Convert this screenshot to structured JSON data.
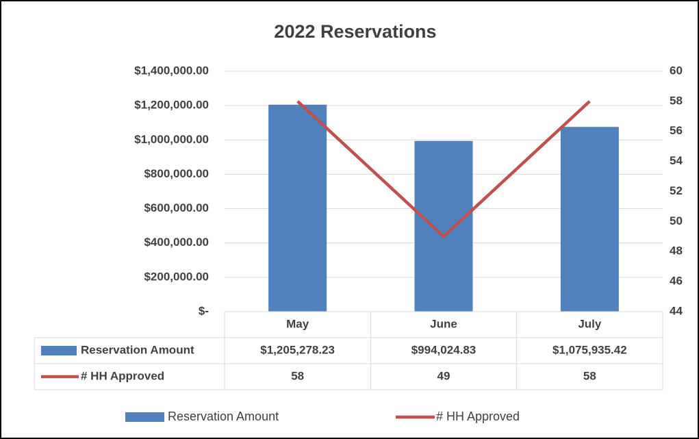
{
  "chart_data": {
    "type": "bar",
    "title": "2022 Reservations",
    "categories": [
      "May",
      "June",
      "July"
    ],
    "series": [
      {
        "name": "Reservation Amount",
        "type": "bar",
        "color": "#4f81bd",
        "values": [
          1205278.23,
          994024.83,
          1075935.42
        ],
        "value_labels": [
          "$1,205,278.23",
          "$994,024.83",
          "$1,075,935.42"
        ]
      },
      {
        "name": "# HH Approved",
        "type": "line",
        "axis": "y2",
        "color": "#c0504d",
        "values": [
          58,
          49,
          58
        ]
      }
    ],
    "ylim": [
      0,
      1400000
    ],
    "yticks": [
      {
        "value": 0,
        "label": "$-"
      },
      {
        "value": 200000,
        "label": "$200,000.00"
      },
      {
        "value": 400000,
        "label": "$400,000.00"
      },
      {
        "value": 600000,
        "label": "$600,000.00"
      },
      {
        "value": 800000,
        "label": "$800,000.00"
      },
      {
        "value": 1000000,
        "label": "$1,000,000.00"
      },
      {
        "value": 1200000,
        "label": "$1,200,000.00"
      },
      {
        "value": 1400000,
        "label": "$1,400,000.00"
      }
    ],
    "y2lim": [
      44,
      60
    ],
    "y2ticks": [
      44,
      46,
      48,
      50,
      52,
      54,
      56,
      58,
      60
    ],
    "grid": true,
    "legend": "bottom",
    "data_table": true
  }
}
